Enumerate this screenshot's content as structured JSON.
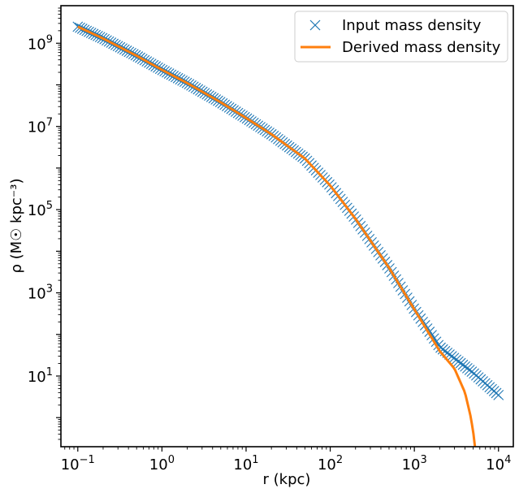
{
  "chart_data": {
    "type": "line",
    "xlabel": "r (kpc)",
    "ylabel": "ρ (M☉ kpc⁻³)",
    "xscale": "log",
    "yscale": "log",
    "xlim": [
      0.063,
      15000
    ],
    "ylim": [
      0.2,
      8000000000.0
    ],
    "x_ticks": [
      {
        "value": 0.1,
        "base": "10",
        "exp": "−1"
      },
      {
        "value": 1,
        "base": "10",
        "exp": "0"
      },
      {
        "value": 10,
        "base": "10",
        "exp": "1"
      },
      {
        "value": 100,
        "base": "10",
        "exp": "2"
      },
      {
        "value": 1000,
        "base": "10",
        "exp": "3"
      },
      {
        "value": 10000,
        "base": "10",
        "exp": "4"
      }
    ],
    "y_ticks": [
      {
        "value": 10,
        "base": "10",
        "exp": "1"
      },
      {
        "value": 1000,
        "base": "10",
        "exp": "3"
      },
      {
        "value": 100000,
        "base": "10",
        "exp": "5"
      },
      {
        "value": 10000000,
        "base": "10",
        "exp": "7"
      },
      {
        "value": 1000000000,
        "base": "10",
        "exp": "9"
      }
    ],
    "legend_position": "top-right",
    "grid": false,
    "series": [
      {
        "name": "Input mass density",
        "marker": "x",
        "color": "#1f77b4",
        "x": [
          0.1,
          0.2,
          0.5,
          1,
          2,
          5,
          10,
          20,
          50,
          100,
          200,
          500,
          1000,
          2000,
          5000,
          10000
        ],
        "y": [
          2500000000.0,
          1300000000.0,
          500000000.0,
          230000000.0,
          110000000.0,
          38000000.0,
          16000000.0,
          6500000.0,
          1700000.0,
          380000.0,
          60000.0,
          4000.0,
          400.0,
          50.0,
          12.0,
          3.5
        ]
      },
      {
        "name": "Derived mass density",
        "marker": "line",
        "color": "#ff7f0e",
        "x": [
          0.1,
          0.2,
          0.5,
          1,
          2,
          5,
          10,
          20,
          50,
          100,
          200,
          500,
          1000,
          2000,
          3000,
          4000,
          4700,
          5100,
          5250
        ],
        "y": [
          2500000000.0,
          1300000000.0,
          500000000.0,
          230000000.0,
          110000000.0,
          38000000.0,
          16000000.0,
          6500000.0,
          1700000.0,
          380000.0,
          60000.0,
          4000.0,
          400.0,
          40.0,
          15.0,
          4,
          1,
          0.35,
          0.2
        ]
      }
    ]
  }
}
